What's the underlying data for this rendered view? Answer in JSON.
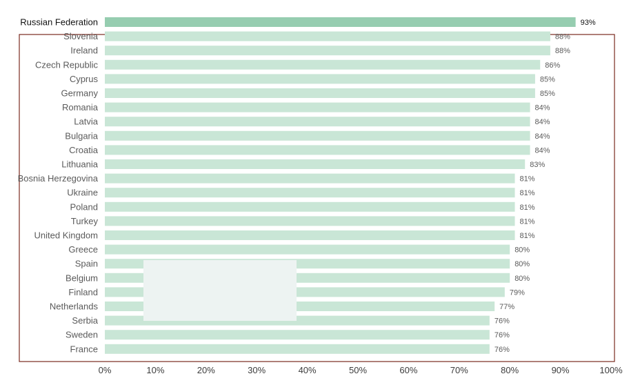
{
  "chart_data": {
    "type": "bar",
    "orientation": "horizontal",
    "categories": [
      "Russian Federation",
      "Slovenia",
      "Ireland",
      "Czech Republic",
      "Cyprus",
      "Germany",
      "Romania",
      "Latvia",
      "Bulgaria",
      "Croatia",
      "Lithuania",
      "Bosnia Herzegovina",
      "Ukraine",
      "Poland",
      "Turkey",
      "United Kingdom",
      "Greece",
      "Spain",
      "Belgium",
      "Finland",
      "Netherlands",
      "Serbia",
      "Sweden",
      "France"
    ],
    "values": [
      93,
      88,
      88,
      86,
      85,
      85,
      84,
      84,
      84,
      84,
      83,
      81,
      81,
      81,
      81,
      81,
      80,
      80,
      80,
      79,
      77,
      76,
      76,
      76
    ],
    "value_labels": [
      "93%",
      "88%",
      "88%",
      "86%",
      "85%",
      "85%",
      "84%",
      "84%",
      "84%",
      "84%",
      "83%",
      "81%",
      "81%",
      "81%",
      "81%",
      "81%",
      "80%",
      "80%",
      "80%",
      "79%",
      "77%",
      "76%",
      "76%",
      "76%"
    ],
    "highlighted_category": "Russian Federation",
    "xlim": [
      0,
      100
    ],
    "x_ticks": [
      0,
      10,
      20,
      30,
      40,
      50,
      60,
      70,
      80,
      90,
      100
    ],
    "x_tick_labels": [
      "0%",
      "10%",
      "20%",
      "30%",
      "40%",
      "50%",
      "60%",
      "70%",
      "80%",
      "90%",
      "100%"
    ],
    "title": "",
    "xlabel": "",
    "ylabel": "",
    "grid": false,
    "colors": {
      "bar": "#c9e6d6",
      "bar_highlight": "#96cdb0",
      "label_text": "#5a5a5a",
      "label_highlight": "#111111",
      "frame": "#7a2a1f",
      "overlay_box": "#edf3f2"
    }
  }
}
